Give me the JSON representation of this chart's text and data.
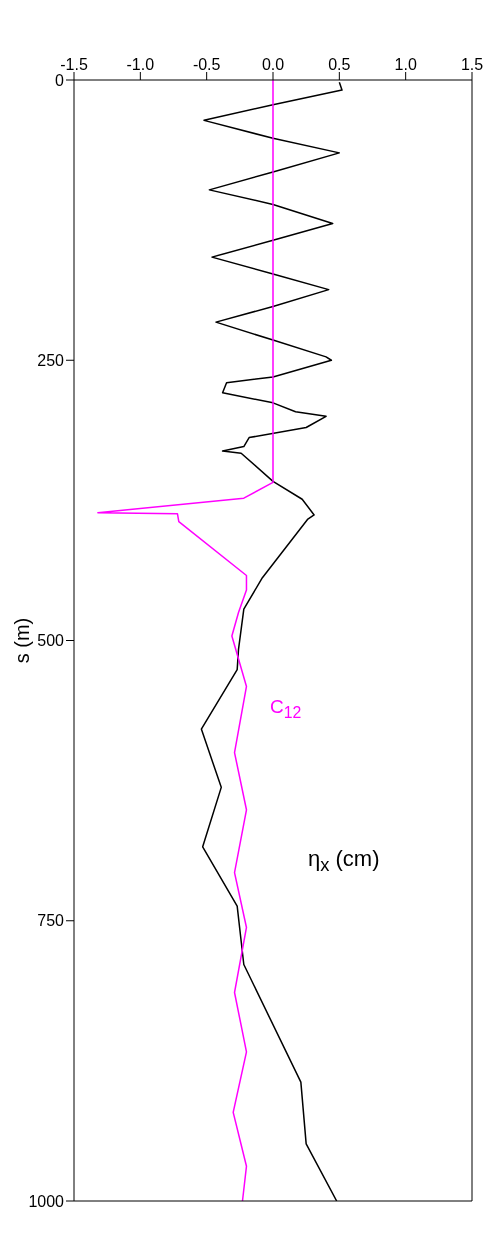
{
  "chart_data": {
    "type": "line",
    "ylabel": "s (m)",
    "ylim": [
      1000,
      0
    ],
    "yticks": [
      0,
      250,
      500,
      750,
      1000
    ],
    "xlim": [
      -1.5,
      1.5
    ],
    "xticks": [
      -1.5,
      {
        "value": -1,
        "label": "-1.0"
      },
      -0.5,
      {
        "value": 0,
        "label": "0.0"
      },
      0.5,
      {
        "value": 1,
        "label": "1.0"
      },
      1.5
    ],
    "series": [
      {
        "name": "η$_{x}$ (cm)",
        "color": "#000000",
        "x": [
          0.5,
          0.52,
          0,
          -0.52,
          0,
          0.5,
          0,
          -0.48,
          0,
          0.45,
          0,
          -0.46,
          0,
          0.42,
          0,
          -0.43,
          0,
          0.4,
          0.44,
          0,
          -0.35,
          -0.38,
          0,
          0.17,
          0.4,
          0.25,
          -0.18,
          -0.22,
          -0.38,
          -0.24,
          0,
          0.22,
          0.31,
          0.26,
          -0.08,
          -0.22,
          -0.26,
          -0.27,
          -0.54,
          -0.39,
          -0.53,
          -0.27,
          -0.22,
          0.21,
          0.25,
          0.48
        ],
        "values": [
          2,
          9,
          22,
          36,
          52,
          65,
          82,
          98,
          111,
          128,
          143,
          158,
          173,
          187,
          202,
          216,
          232,
          247,
          250,
          265,
          270,
          279,
          288,
          296,
          300,
          310,
          319,
          327,
          331,
          333,
          358,
          374,
          388,
          392,
          444,
          472,
          508,
          526,
          579,
          631,
          684,
          737,
          789,
          894,
          949,
          1000
        ]
      },
      {
        "name": "C$_{12}$",
        "color": "#ff00ff",
        "x": [
          0,
          0,
          -0.22,
          -1.32,
          -0.72,
          -0.71,
          -0.2,
          -0.2,
          -0.26,
          -0.31,
          -0.2,
          -0.29,
          -0.2,
          -0.29,
          -0.2,
          -0.29,
          -0.2,
          -0.3,
          -0.2,
          -0.23
        ],
        "values": [
          0,
          359,
          373,
          386,
          387,
          394,
          442,
          455,
          475,
          496,
          541,
          600,
          651,
          707,
          756,
          814,
          867,
          921,
          969,
          1000
        ]
      }
    ]
  }
}
